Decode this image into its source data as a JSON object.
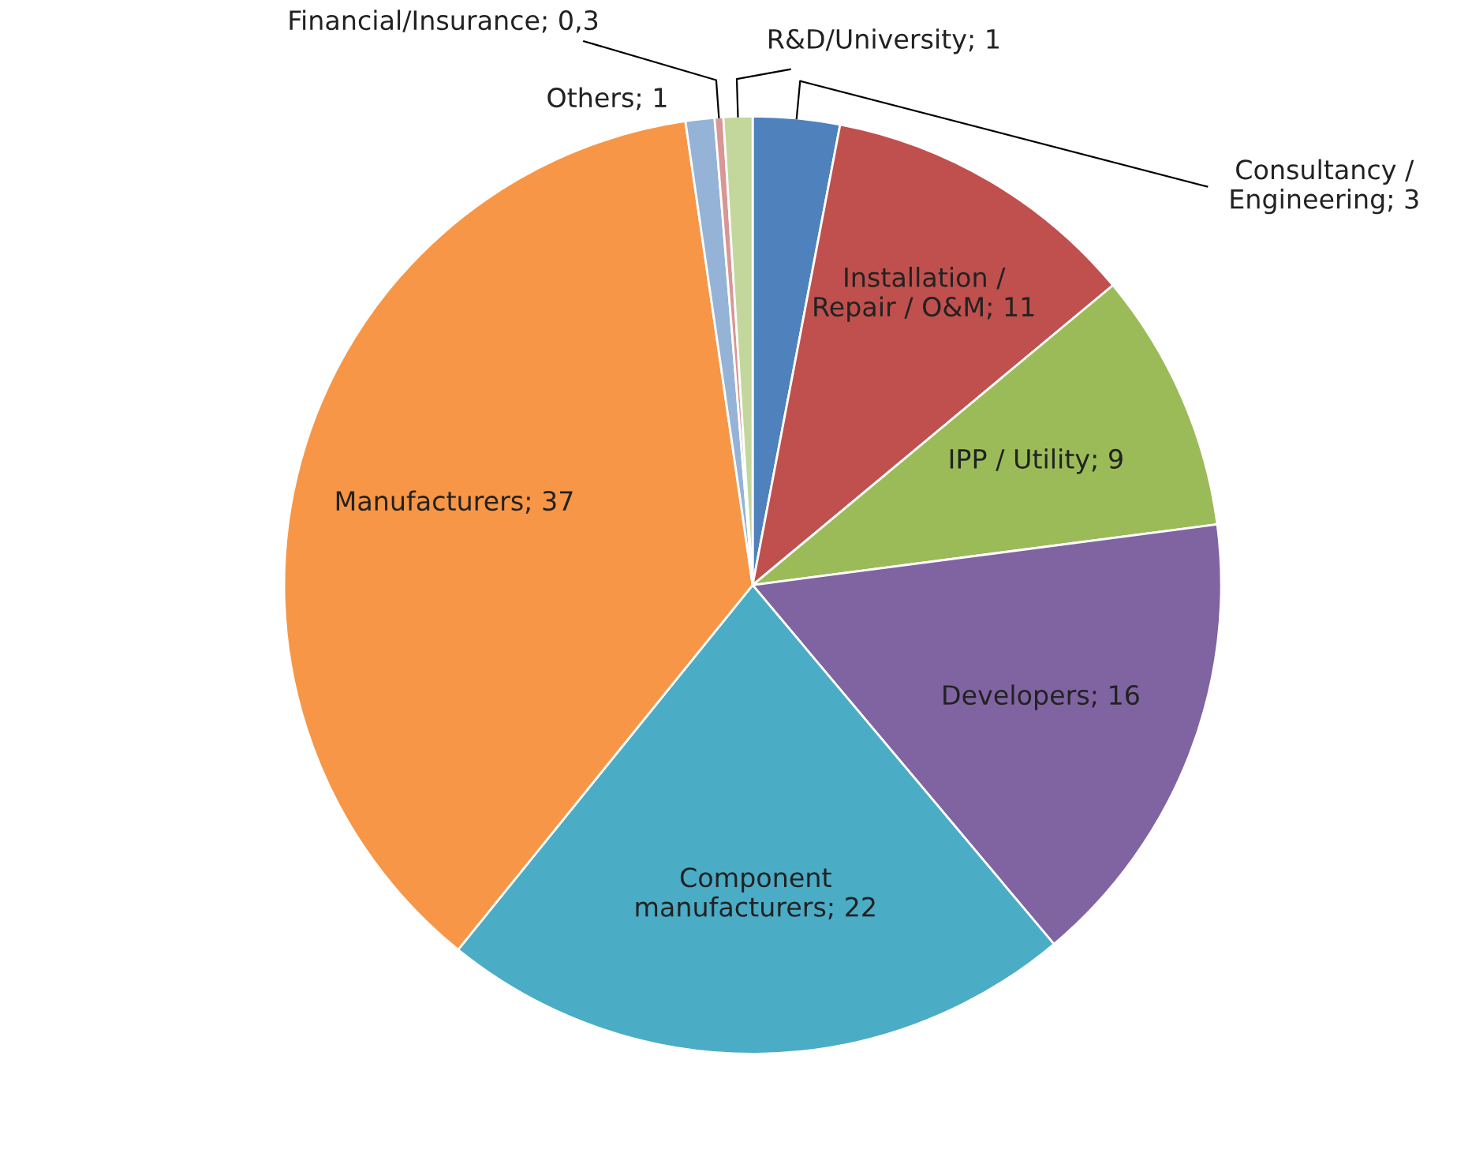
{
  "chart_data": {
    "type": "pie",
    "categories": [
      "Consultancy / Engineering",
      "Installation / Repair / O&M",
      "IPP / Utility",
      "Developers",
      "Component manufacturers",
      "Manufacturers",
      "Others",
      "Financial/Insurance",
      "R&D/University"
    ],
    "values": [
      3,
      11,
      9,
      16,
      22,
      37,
      1,
      0.3,
      1
    ],
    "value_labels": [
      "3",
      "11",
      "9",
      "16",
      "22",
      "37",
      "1",
      "0,3",
      "1"
    ],
    "colors": [
      "#4f81bd",
      "#c0504d",
      "#9bbb59",
      "#8064a2",
      "#4bacc6",
      "#f79646",
      "#95b3d7",
      "#d99694",
      "#c3d69b"
    ],
    "legend": false
  }
}
